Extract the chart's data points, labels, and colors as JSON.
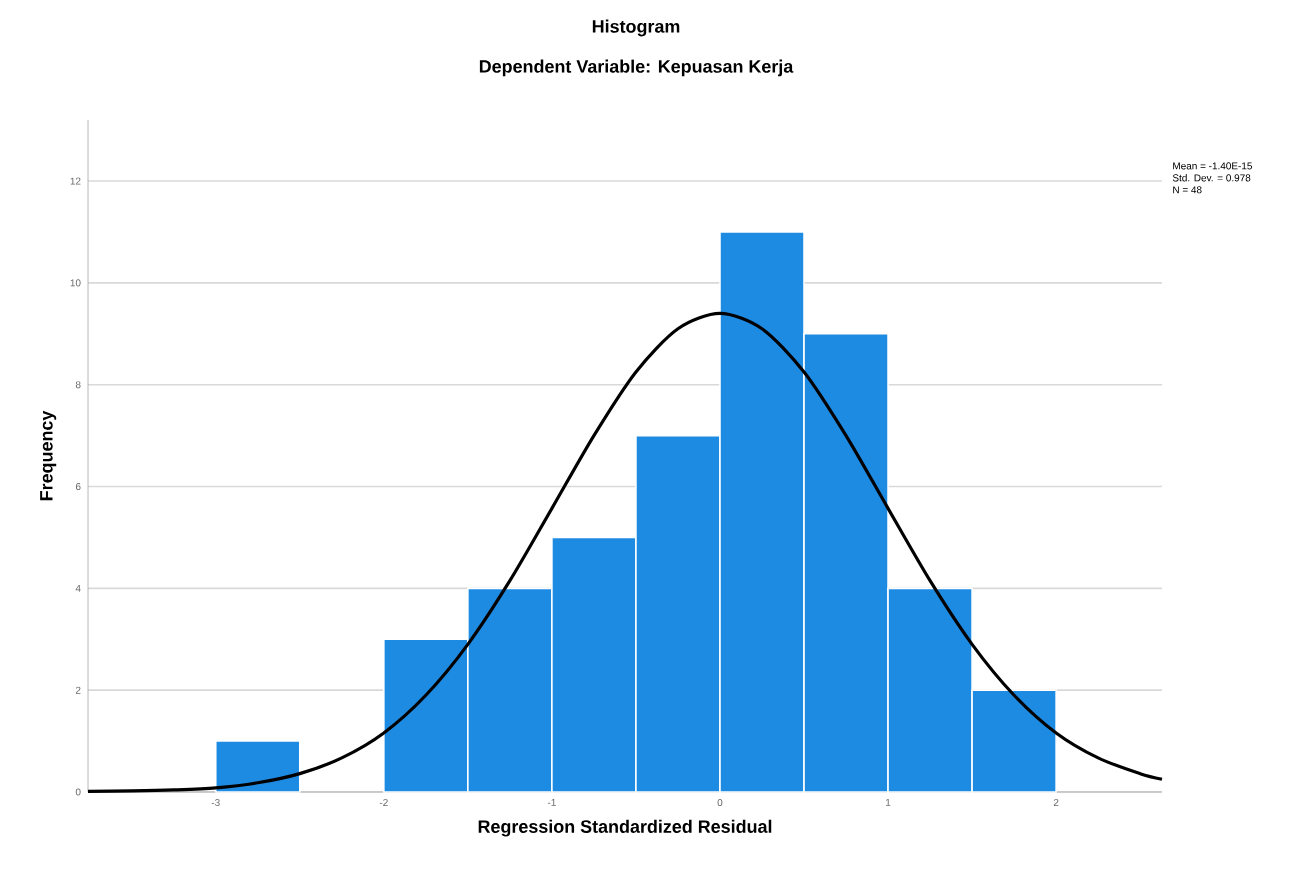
{
  "chart_data": {
    "type": "histogram",
    "title": "Histogram",
    "subtitle": "Dependent Variable: Kepuasan Kerja",
    "xlabel": "Regression Standardized Residual",
    "ylabel": "Frequency",
    "annotations": [
      "Mean = -1.40E-15",
      "Std. Dev. = 0.978",
      "N = 48"
    ],
    "series": [
      {
        "type": "histogram",
        "color": "#1e8be3",
        "bins": [
          -3,
          -2.5,
          -2,
          -1.5,
          -1,
          -0.5,
          0,
          0.5,
          1,
          1.5,
          2
        ],
        "values": [
          1,
          0,
          3,
          4,
          5,
          7,
          11,
          9,
          4,
          2
        ]
      },
      {
        "type": "line",
        "color": "#000000",
        "x": [
          -3.76,
          -3.5,
          -3.25,
          -3,
          -2.75,
          -2.5,
          -2.25,
          -2,
          -1.75,
          -1.5,
          -1.25,
          -1,
          -0.75,
          -0.5,
          -0.25,
          0,
          0.25,
          0.5,
          0.75,
          1,
          1.25,
          1.5,
          1.75,
          2,
          2.25,
          2.5,
          2.63
        ],
        "values": [
          0.01,
          0.02,
          0.04,
          0.08,
          0.18,
          0.36,
          0.67,
          1.16,
          1.9,
          2.9,
          4.15,
          5.57,
          7.0,
          8.25,
          9.1,
          9.4,
          9.1,
          8.25,
          7.0,
          5.57,
          4.15,
          2.9,
          1.9,
          1.16,
          0.67,
          0.36,
          0.25
        ]
      }
    ],
    "xlim": [
      -3.76,
      2.63
    ],
    "ylim": [
      0,
      13.2
    ],
    "xticks": [
      -3,
      -2,
      -1,
      0,
      1,
      2
    ],
    "yticks": [
      0,
      2,
      4,
      6,
      8,
      10,
      12
    ],
    "grid": "y"
  }
}
